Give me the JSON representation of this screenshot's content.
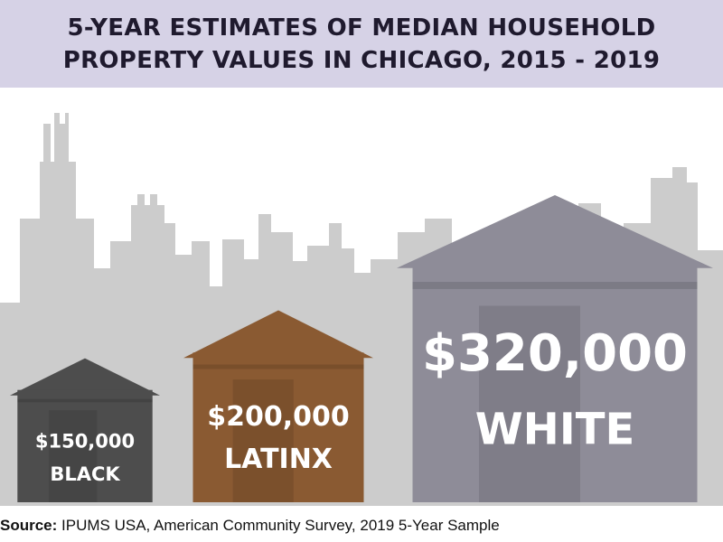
{
  "title_line1": "5-YEAR ESTIMATES OF MEDIAN HOUSEHOLD",
  "title_line2": "PROPERTY VALUES IN CHICAGO, 2015 - 2019",
  "source_prefix": "Source:",
  "source_text": "IPUMS USA, American Community Survey, 2019 5-Year Sample",
  "colors": {
    "banner": "#d6d2e6",
    "skyline": "#cccccc",
    "black": "#4d4d4d",
    "latinx": "#8a5a32",
    "white": "#8e8c98"
  },
  "chart_data": {
    "type": "bar",
    "title": "5-YEAR ESTIMATES OF MEDIAN HOUSEHOLD PROPERTY VALUES IN CHICAGO, 2015 - 2019",
    "categories": [
      "BLACK",
      "LATINX",
      "WHITE"
    ],
    "values": [
      150000,
      200000,
      320000
    ],
    "value_labels": [
      "$150,000",
      "$200,000",
      "$320,000"
    ],
    "unit": "USD",
    "mark": "house-shaped bars",
    "ylim": [
      0,
      320000
    ],
    "grid": false,
    "legend": "none"
  }
}
